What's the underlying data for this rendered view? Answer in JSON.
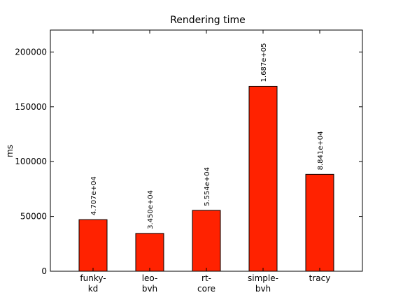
{
  "chart_data": {
    "type": "bar",
    "title": "Rendering time",
    "xlabel": "",
    "ylabel": "ms",
    "categories": [
      [
        "funky-",
        "kd"
      ],
      [
        "leo-",
        "bvh"
      ],
      [
        "rt-",
        "core"
      ],
      [
        "simple-",
        "bvh"
      ],
      [
        "tracy"
      ]
    ],
    "values": [
      47070,
      34500,
      55540,
      168700,
      88410
    ],
    "value_labels": [
      "4.707e+04",
      "3.450e+04",
      "5.554e+04",
      "1.687e+05",
      "8.841e+04"
    ],
    "ylim": [
      0,
      220000
    ],
    "yticks": [
      0,
      50000,
      100000,
      150000,
      200000
    ],
    "ytick_labels": [
      "0",
      "50000",
      "100000",
      "150000",
      "200000"
    ],
    "bar_color": "#ff2200",
    "grid": false,
    "legend": "none"
  }
}
